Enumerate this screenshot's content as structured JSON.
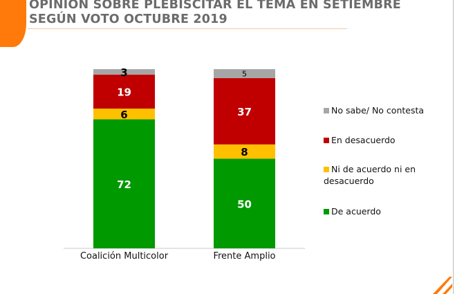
{
  "title": {
    "line1": "OPINIÓN SOBRE PLEBISCITAR EL TEMA EN SETIEMBRE",
    "line2": "SEGÚN VOTO OCTUBRE 2019"
  },
  "chart_data": {
    "type": "bar",
    "stacked": true,
    "categories": [
      "Coalición Multicolor",
      "Frente Amplio"
    ],
    "series": [
      {
        "name": "De acuerdo",
        "color": "#009900",
        "values": [
          72,
          50
        ]
      },
      {
        "name": "Ni de acuerdo ni en desacuerdo",
        "color": "#FFC000",
        "values": [
          6,
          8
        ]
      },
      {
        "name": "En desacuerdo",
        "color": "#C00000",
        "values": [
          19,
          37
        ]
      },
      {
        "name": "No sabe/ No contesta",
        "color": "#A6A6A6",
        "values": [
          3,
          5
        ]
      }
    ],
    "ylim": [
      0,
      100
    ],
    "grid": false,
    "legend_position": "right"
  }
}
